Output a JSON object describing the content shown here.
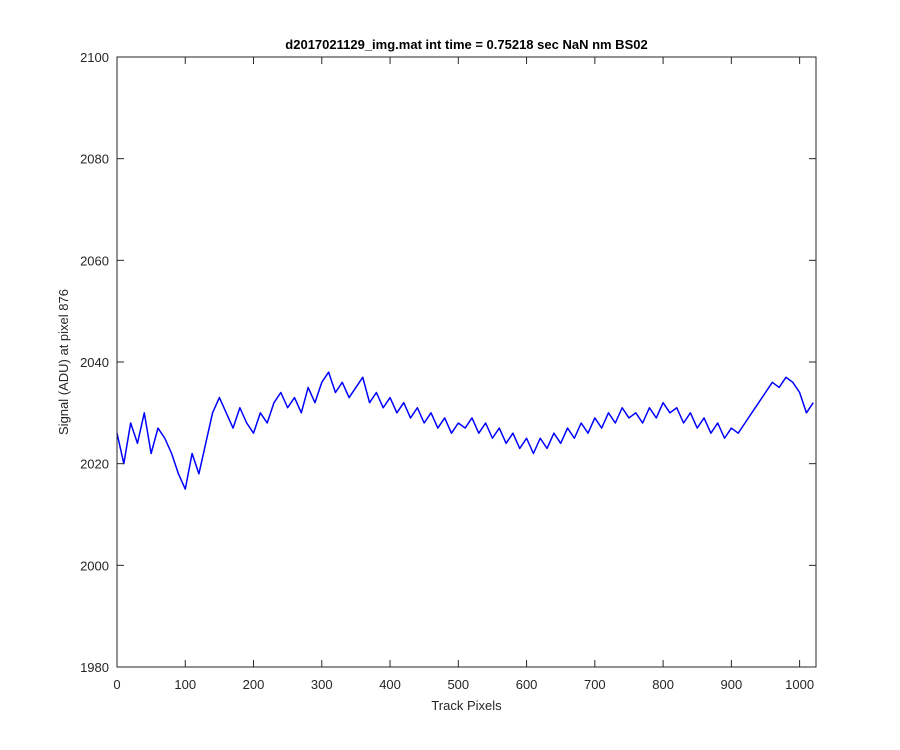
{
  "chart_data": {
    "type": "line",
    "title": "d2017021129_img.mat int time = 0.75218 sec  NaN nm BS02",
    "xlabel": "Track Pixels",
    "ylabel": "Signal (ADU) at pixel 876",
    "xlim": [
      0,
      1024
    ],
    "ylim": [
      1980,
      2100
    ],
    "xticks": [
      "0",
      "100",
      "200",
      "300",
      "400",
      "500",
      "600",
      "700",
      "800",
      "900",
      "1000"
    ],
    "yticks": [
      "1980",
      "2000",
      "2020",
      "2040",
      "2060",
      "2080",
      "2100"
    ],
    "grid": false,
    "legend": "none",
    "series": [
      {
        "color": "#0000ff",
        "x": [
          0,
          10,
          20,
          30,
          40,
          50,
          60,
          70,
          80,
          90,
          100,
          110,
          120,
          130,
          140,
          150,
          160,
          170,
          180,
          190,
          200,
          210,
          220,
          230,
          240,
          250,
          260,
          270,
          280,
          290,
          300,
          310,
          320,
          330,
          340,
          350,
          360,
          370,
          380,
          390,
          400,
          410,
          420,
          430,
          440,
          450,
          460,
          470,
          480,
          490,
          500,
          510,
          520,
          530,
          540,
          550,
          560,
          570,
          580,
          590,
          600,
          610,
          620,
          630,
          640,
          650,
          660,
          670,
          680,
          690,
          700,
          710,
          720,
          730,
          740,
          750,
          760,
          770,
          780,
          790,
          800,
          810,
          820,
          830,
          840,
          850,
          860,
          870,
          880,
          890,
          900,
          910,
          920,
          930,
          940,
          950,
          960,
          970,
          980,
          990,
          1000,
          1010,
          1020
        ],
        "y": [
          2026,
          2020,
          2028,
          2024,
          2030,
          2022,
          2027,
          2025,
          2022,
          2018,
          2015,
          2022,
          2018,
          2024,
          2030,
          2033,
          2030,
          2027,
          2031,
          2028,
          2026,
          2030,
          2028,
          2032,
          2034,
          2031,
          2033,
          2030,
          2035,
          2032,
          2036,
          2038,
          2034,
          2036,
          2033,
          2035,
          2037,
          2032,
          2034,
          2031,
          2033,
          2030,
          2032,
          2029,
          2031,
          2028,
          2030,
          2027,
          2029,
          2026,
          2028,
          2027,
          2029,
          2026,
          2028,
          2025,
          2027,
          2024,
          2026,
          2023,
          2025,
          2022,
          2025,
          2023,
          2026,
          2024,
          2027,
          2025,
          2028,
          2026,
          2029,
          2027,
          2030,
          2028,
          2031,
          2029,
          2030,
          2028,
          2031,
          2029,
          2032,
          2030,
          2031,
          2028,
          2030,
          2027,
          2029,
          2026,
          2028,
          2025,
          2027,
          2026,
          2028,
          2030,
          2032,
          2034,
          2036,
          2035,
          2037,
          2036,
          2034,
          2030,
          2032
        ]
      }
    ]
  }
}
